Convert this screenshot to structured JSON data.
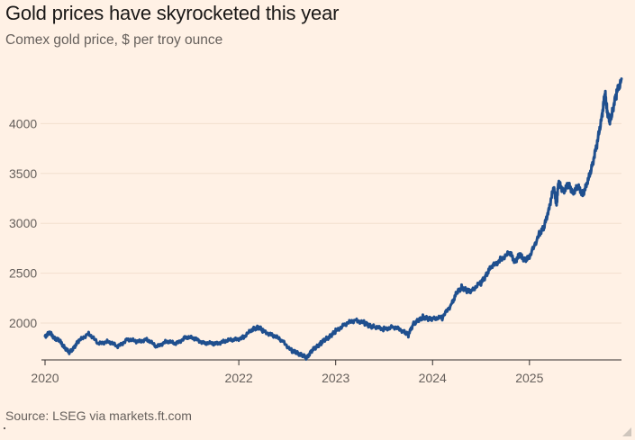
{
  "title": "Gold prices have skyrocketed this year",
  "subtitle": "Comex gold price, $ per troy ounce",
  "source": "Source: LSEG via markets.ft.com",
  "colors": {
    "background": "#FFF1E5",
    "line": "#1F4F8E",
    "grid": "#F2DFCE",
    "axis": "#33302E",
    "text": "#66605C"
  },
  "chart_data": {
    "type": "line",
    "title": "Gold prices have skyrocketed this year",
    "subtitle": "Comex gold price, $ per troy ounce",
    "xlabel": "",
    "ylabel": "$ per troy ounce",
    "xlim": [
      2020.0,
      2025.95
    ],
    "ylim": [
      1630,
      4500
    ],
    "grid": true,
    "legend": "none",
    "y_ticks": [
      2000,
      2500,
      3000,
      3500,
      4000
    ],
    "x_ticks": [
      {
        "value": 2020,
        "label": "2020"
      },
      {
        "value": 2022,
        "label": "2022"
      },
      {
        "value": 2023,
        "label": "2023"
      },
      {
        "value": 2024,
        "label": "2024"
      },
      {
        "value": 2025,
        "label": "2025"
      }
    ],
    "series": [
      {
        "name": "Comex gold price",
        "x": [
          2020.0,
          2020.05,
          2020.1,
          2020.15,
          2020.2,
          2020.25,
          2020.3,
          2020.35,
          2020.45,
          2020.55,
          2020.65,
          2020.75,
          2020.85,
          2020.95,
          2021.05,
          2021.15,
          2021.25,
          2021.35,
          2021.45,
          2021.55,
          2021.65,
          2021.75,
          2021.85,
          2021.95,
          2022.05,
          2022.15,
          2022.2,
          2022.25,
          2022.35,
          2022.45,
          2022.55,
          2022.6,
          2022.65,
          2022.7,
          2022.75,
          2022.8,
          2022.85,
          2022.9,
          2022.95,
          2023.0,
          2023.1,
          2023.2,
          2023.3,
          2023.35,
          2023.4,
          2023.5,
          2023.6,
          2023.7,
          2023.75,
          2023.8,
          2023.85,
          2023.9,
          2023.95,
          2024.0,
          2024.1,
          2024.2,
          2024.25,
          2024.3,
          2024.35,
          2024.4,
          2024.5,
          2024.55,
          2024.6,
          2024.7,
          2024.8,
          2024.85,
          2024.9,
          2024.95,
          2025.0,
          2025.1,
          2025.15,
          2025.2,
          2025.25,
          2025.28,
          2025.3,
          2025.35,
          2025.4,
          2025.45,
          2025.5,
          2025.55,
          2025.6,
          2025.65,
          2025.7,
          2025.75,
          2025.78,
          2025.8,
          2025.83,
          2025.86,
          2025.9,
          2025.95
        ],
        "y": [
          1870,
          1900,
          1850,
          1820,
          1760,
          1700,
          1760,
          1820,
          1900,
          1790,
          1820,
          1760,
          1840,
          1810,
          1840,
          1760,
          1820,
          1790,
          1860,
          1840,
          1800,
          1790,
          1820,
          1830,
          1860,
          1940,
          1960,
          1920,
          1880,
          1820,
          1720,
          1700,
          1680,
          1650,
          1720,
          1760,
          1800,
          1840,
          1870,
          1920,
          1990,
          2030,
          2000,
          1970,
          1960,
          1940,
          1960,
          1920,
          1880,
          1990,
          2020,
          2060,
          2040,
          2050,
          2050,
          2200,
          2300,
          2360,
          2320,
          2330,
          2400,
          2480,
          2550,
          2640,
          2700,
          2620,
          2680,
          2640,
          2650,
          2900,
          2950,
          3150,
          3350,
          3200,
          3400,
          3330,
          3380,
          3320,
          3360,
          3300,
          3400,
          3600,
          3800,
          4100,
          4300,
          4150,
          4000,
          4150,
          4300,
          4450
        ]
      }
    ]
  }
}
